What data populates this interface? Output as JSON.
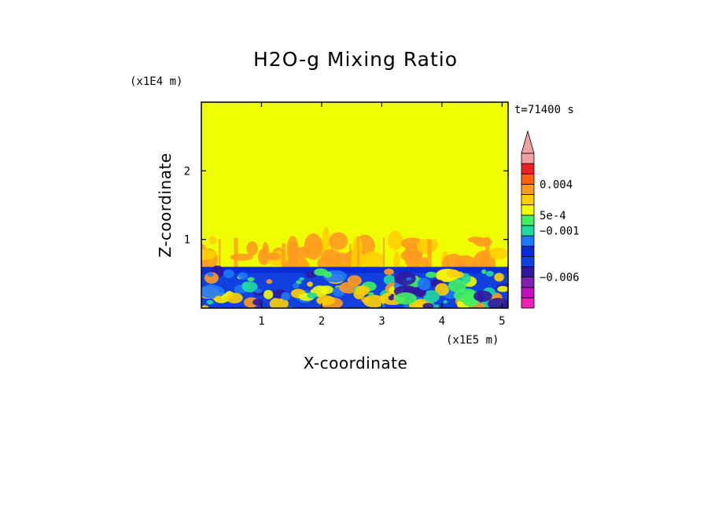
{
  "chart_data": {
    "type": "heatmap",
    "title": "H2O-g Mixing Ratio",
    "xlabel": "X-coordinate",
    "ylabel": "Z-coordinate",
    "x_scale_label": "(x1E5 m)",
    "y_scale_label": "(x1E4 m)",
    "time_label": "t=71400 s",
    "xlim": [
      0,
      5.1
    ],
    "ylim": [
      0,
      3.0
    ],
    "x_ticks": [
      {
        "value": 1,
        "label": "1"
      },
      {
        "value": 2,
        "label": "2"
      },
      {
        "value": 3,
        "label": "3"
      },
      {
        "value": 4,
        "label": "4"
      },
      {
        "value": 5,
        "label": "5"
      }
    ],
    "y_ticks": [
      {
        "value": 1,
        "label": "1"
      },
      {
        "value": 2,
        "label": "2"
      }
    ],
    "colorbar": {
      "colors_bottom_to_top": [
        "#f020b8",
        "#c010c0",
        "#8020b0",
        "#3018a0",
        "#1040e0",
        "#0a2cd8",
        "#1e78ff",
        "#20d8a0",
        "#40f060",
        "#f0ff00",
        "#ffd000",
        "#ff9a20",
        "#ff6010",
        "#ee2020",
        "#f0a0a0"
      ],
      "labels": [
        {
          "text": "0.004",
          "level": 12
        },
        {
          "text": "5e-4",
          "level": 9
        },
        {
          "text": "−0.001",
          "level": 7.5
        },
        {
          "text": "−0.006",
          "level": 3
        }
      ]
    },
    "regions": {
      "background_color": "#f0ff00",
      "boundary_layer_top_z": 0.6,
      "plume_layer_top_z": 1.05
    }
  }
}
